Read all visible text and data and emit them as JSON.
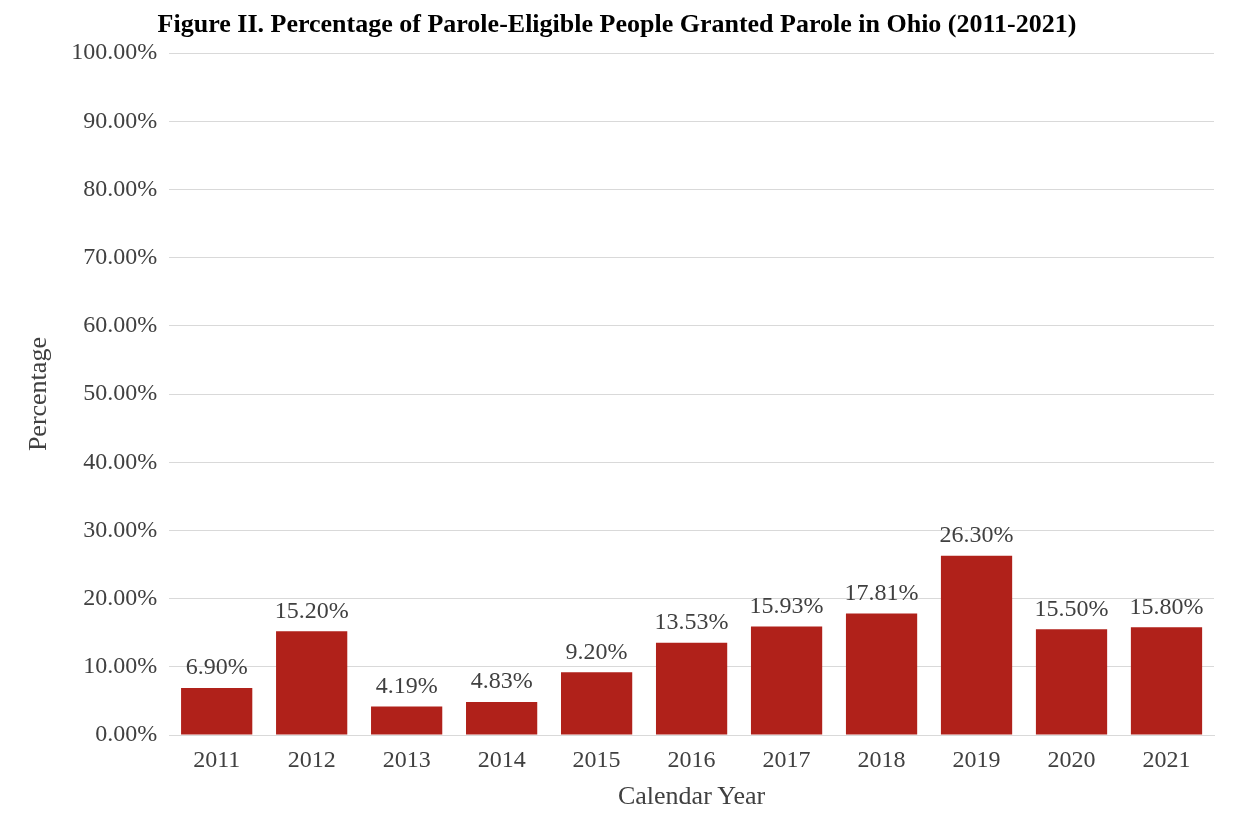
{
  "chart_data": {
    "type": "bar",
    "title": "Figure II. Percentage of Parole-Eligible People Granted Parole in Ohio (2011-2021)",
    "xlabel": "Calendar Year",
    "ylabel": "Percentage",
    "categories": [
      "2011",
      "2012",
      "2013",
      "2014",
      "2015",
      "2016",
      "2017",
      "2018",
      "2019",
      "2020",
      "2021"
    ],
    "values": [
      6.9,
      15.2,
      4.19,
      4.83,
      9.2,
      13.53,
      15.93,
      17.81,
      26.3,
      15.5,
      15.8
    ],
    "value_labels": [
      "6.90%",
      "15.20%",
      "4.19%",
      "4.83%",
      "9.20%",
      "13.53%",
      "15.93%",
      "17.81%",
      "26.30%",
      "15.50%",
      "15.80%"
    ],
    "color": "#b0211a",
    "ylim": [
      0,
      100
    ],
    "yticks": [
      {
        "value": 0,
        "label": "0.00%"
      },
      {
        "value": 10,
        "label": "10.00%"
      },
      {
        "value": 20,
        "label": "20.00%"
      },
      {
        "value": 30,
        "label": "30.00%"
      },
      {
        "value": 40,
        "label": "40.00%"
      },
      {
        "value": 50,
        "label": "50.00%"
      },
      {
        "value": 60,
        "label": "60.00%"
      },
      {
        "value": 70,
        "label": "70.00%"
      },
      {
        "value": 80,
        "label": "80.00%"
      },
      {
        "value": 90,
        "label": "90.00%"
      },
      {
        "value": 100,
        "label": "100.00%"
      }
    ],
    "grid": "y"
  }
}
